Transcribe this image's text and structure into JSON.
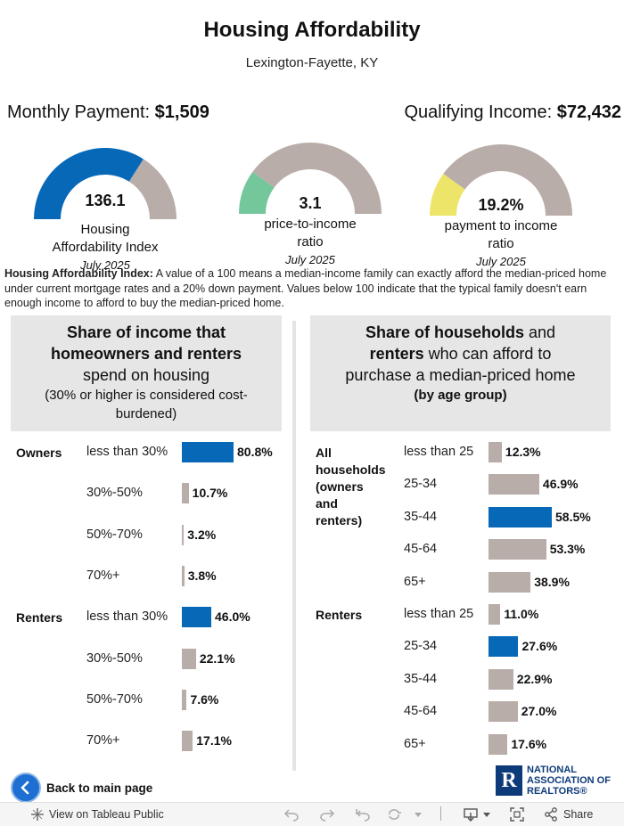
{
  "header": {
    "title": "Housing Affordability",
    "subtitle": "Lexington-Fayette, KY"
  },
  "metrics": {
    "payment_label": "Monthly Payment:",
    "payment_value": "$1,509",
    "income_label": "Qualifying Income:",
    "income_value": "$72,432"
  },
  "gauges": [
    {
      "value": "136.1",
      "label_line1": "Housing",
      "label_line2": "Affordability Index",
      "date": "July 2025",
      "fill_fraction": 0.68,
      "color": "#0868b8"
    },
    {
      "value": "3.1",
      "label_line1": "price-to-income",
      "label_line2": "ratio",
      "date": "July 2025",
      "fill_fraction": 0.2,
      "color": "#73c79a"
    },
    {
      "value": "19.2%",
      "label_line1": "payment to income",
      "label_line2": "ratio",
      "date": "July 2025",
      "fill_fraction": 0.2,
      "color": "#ede46a"
    }
  ],
  "note": {
    "bold": "Housing Affordability Index:",
    "text": " A value of a 100 means a median-income family can exactly afford the median-priced home under current mortgage rates and a 20% down payment. Values below 100 indicate that the typical family doesn't earn enough income to afford to buy the median-priced home."
  },
  "left_panel": {
    "line1": "Share of income that",
    "line2": "homeowners and renters",
    "line3": "spend on housing",
    "line4": "(30% or higher is considered cost-",
    "line5": "burdened)"
  },
  "right_panel": {
    "line1_bold": "Share of households",
    "line1_rest": " and",
    "line2_bold": "renters",
    "line2_rest": " who can afford to",
    "line3": "purchase a median-priced home",
    "line4": "(by age group)"
  },
  "colors": {
    "highlight": "#0868b8",
    "neutral": "#b8ada8",
    "gauge_track": "#b8ada8"
  },
  "chart_data": [
    {
      "type": "bar",
      "title": "Share of income that homeowners and renters spend on housing",
      "groups": [
        {
          "name": "Owners",
          "categories": [
            "less than 30%",
            "30%-50%",
            "50%-70%",
            "70%+"
          ],
          "values": [
            80.8,
            10.7,
            3.2,
            3.8
          ],
          "labels": [
            "80.8%",
            "10.7%",
            "3.2%",
            "3.8%"
          ],
          "highlight": [
            true,
            false,
            false,
            false
          ]
        },
        {
          "name": "Renters",
          "categories": [
            "less than 30%",
            "30%-50%",
            "50%-70%",
            "70%+"
          ],
          "values": [
            46.0,
            22.1,
            7.6,
            17.1
          ],
          "labels": [
            "46.0%",
            "22.1%",
            "7.6%",
            "17.1%"
          ],
          "highlight": [
            true,
            false,
            false,
            false
          ]
        }
      ]
    },
    {
      "type": "bar",
      "title": "Share of households and renters who can afford to purchase a median-priced home (by age group)",
      "groups": [
        {
          "name": "All households (owners and renters)",
          "name_lines": [
            "All",
            "households",
            "(owners",
            "and",
            "renters)"
          ],
          "categories": [
            "less than 25",
            "25-34",
            "35-44",
            "45-64",
            "65+"
          ],
          "values": [
            12.3,
            46.9,
            58.5,
            53.3,
            38.9
          ],
          "labels": [
            "12.3%",
            "46.9%",
            "58.5%",
            "53.3%",
            "38.9%"
          ],
          "highlight": [
            false,
            false,
            true,
            false,
            false
          ]
        },
        {
          "name": "Renters",
          "categories": [
            "less than 25",
            "25-34",
            "35-44",
            "45-64",
            "65+"
          ],
          "values": [
            11.0,
            27.6,
            22.9,
            27.0,
            17.6
          ],
          "labels": [
            "11.0%",
            "27.6%",
            "22.9%",
            "27.0%",
            "17.6%"
          ],
          "highlight": [
            false,
            true,
            false,
            false,
            false
          ]
        }
      ]
    }
  ],
  "footer": {
    "back_label": "Back to main page",
    "logo_line1": "NATIONAL",
    "logo_line2": "ASSOCIATION OF",
    "logo_line3": "REALTORS®",
    "logo_letter": "R"
  },
  "toolbar": {
    "view_label": "View on Tableau Public",
    "share_label": "Share"
  }
}
